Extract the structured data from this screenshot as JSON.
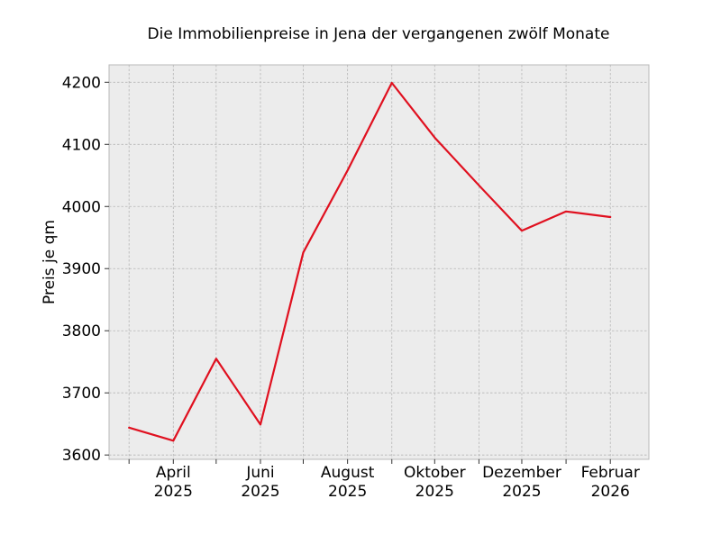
{
  "chart_data": {
    "type": "line",
    "title": "Die Immobilienpreise in Jena der vergangenen zwölf Monate",
    "xlabel": "",
    "ylabel": "Preis je qm",
    "x": [
      "2025-03",
      "2025-04",
      "2025-05",
      "2025-06",
      "2025-07",
      "2025-08",
      "2025-09",
      "2025-10",
      "2025-11",
      "2025-12",
      "2026-01",
      "2026-02"
    ],
    "series": [
      {
        "values": [
          3644,
          3623,
          3755,
          3649,
          3926,
          4058,
          4199,
          4111,
          4034,
          3961,
          3992,
          3983
        ],
        "color": "#e0101f"
      }
    ],
    "x_tick_labels": [
      {
        "x": "2025-04",
        "month": "April",
        "year": "2025"
      },
      {
        "x": "2025-06",
        "month": "Juni",
        "year": "2025"
      },
      {
        "x": "2025-08",
        "month": "August",
        "year": "2025"
      },
      {
        "x": "2025-10",
        "month": "Oktober",
        "year": "2025"
      },
      {
        "x": "2025-12",
        "month": "Dezember",
        "year": "2025"
      },
      {
        "x": "2026-02",
        "month": "Februar",
        "year": "2026"
      }
    ],
    "y_ticks": [
      3600,
      3700,
      3800,
      3900,
      4000,
      4100,
      4200
    ],
    "ylim": [
      3593,
      4228
    ],
    "xlim": [
      "2025-02-15",
      "2026-02-28"
    ],
    "grid": true,
    "background": "#ececec",
    "legend": "none"
  }
}
